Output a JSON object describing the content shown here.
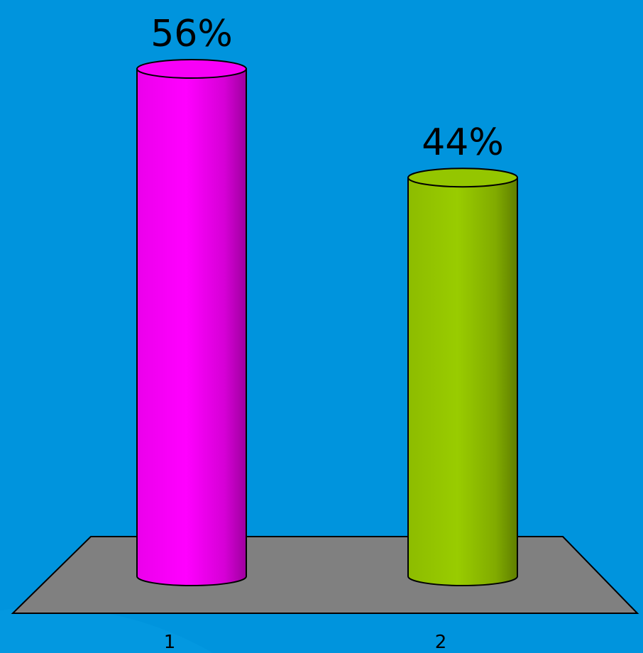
{
  "chart_data": {
    "type": "bar",
    "style": "3d-cylinder",
    "categories": [
      "1",
      "2"
    ],
    "values": [
      56,
      44
    ],
    "data_labels": [
      "56%",
      "44%"
    ],
    "unit": "%",
    "colors": [
      "#ff00ff",
      "#99cc00"
    ],
    "floor_color": "#808080",
    "background": "#0094dd",
    "ylim": [
      0,
      56
    ],
    "grid": false,
    "legend": "none",
    "title": "",
    "xlabel": "",
    "ylabel": ""
  }
}
